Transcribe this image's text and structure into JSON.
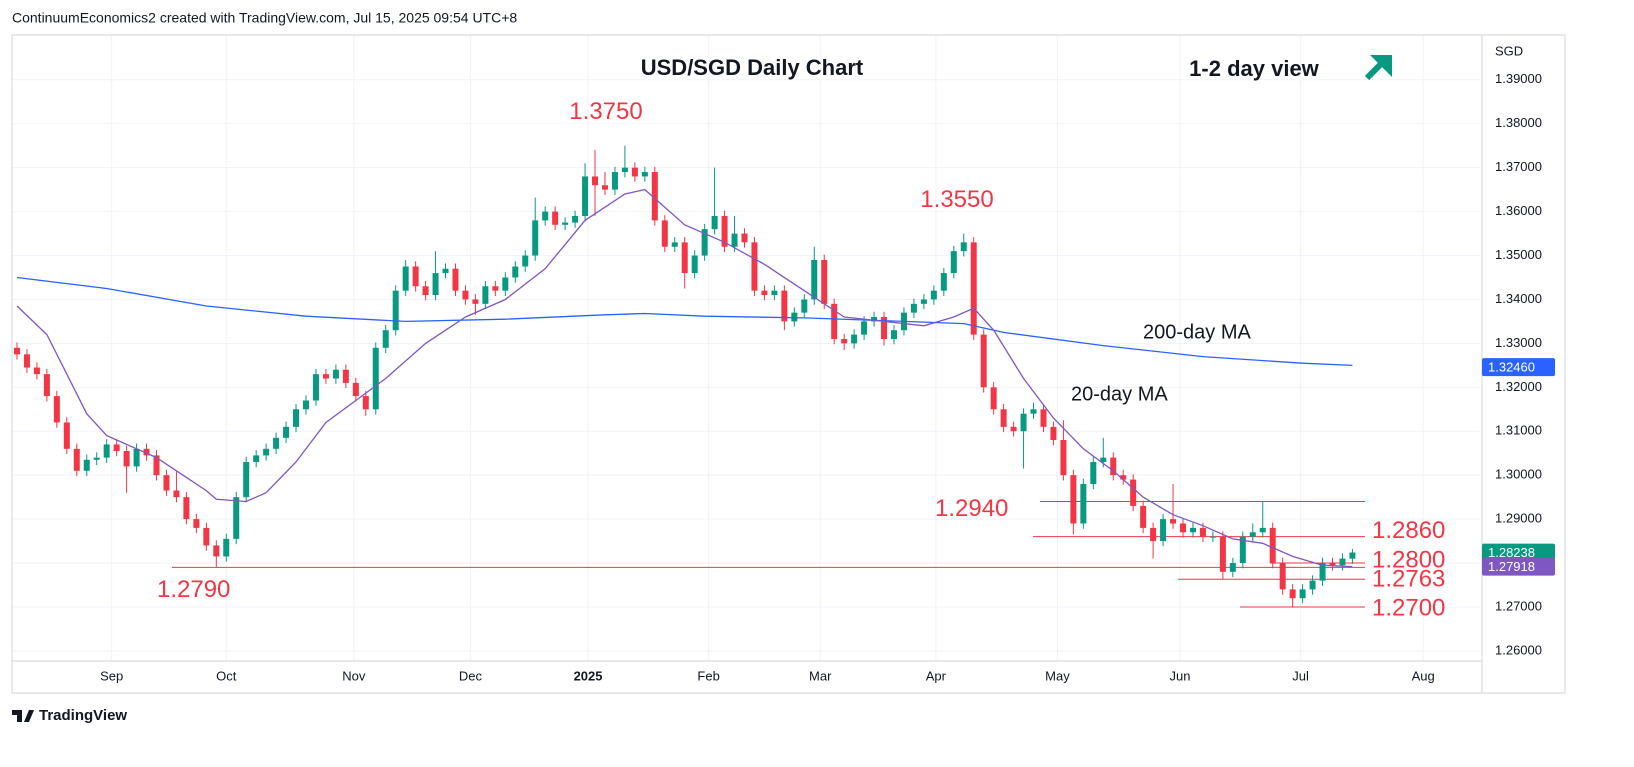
{
  "chart_data": {
    "type": "candlestick",
    "header": "ContinuumEconomics2 created with TradingView.com, Jul 15, 2025 09:54 UTC+8",
    "title": "USD/SGD Daily Chart",
    "view": "1-2 day view",
    "currency": "SGD",
    "footer": "TradingView",
    "up_color": "#089981",
    "down_color": "#f23645",
    "open": [
      1.329,
      1.3275,
      1.3245,
      1.323,
      1.318,
      1.312,
      1.306,
      1.301,
      1.3035,
      1.304,
      1.307,
      1.3055,
      1.302,
      1.306,
      1.3045,
      1.3,
      1.2965,
      1.295,
      1.29,
      1.288,
      1.284,
      1.2815,
      1.2855,
      1.295,
      1.303,
      1.3045,
      1.306,
      1.3085,
      1.311,
      1.315,
      1.317,
      1.323,
      1.322,
      1.324,
      1.321,
      1.318,
      1.315,
      1.329,
      1.333,
      1.342,
      1.3475,
      1.343,
      1.341,
      1.346,
      1.347,
      1.342,
      1.34,
      1.339,
      1.343,
      1.342,
      1.345,
      1.3475,
      1.35,
      1.358,
      1.36,
      1.357,
      1.3575,
      1.359,
      1.368,
      1.366,
      1.365,
      1.369,
      1.37,
      1.368,
      1.369,
      1.358,
      1.352,
      1.353,
      1.346,
      1.35,
      1.356,
      1.359,
      1.352,
      1.355,
      1.353,
      1.342,
      1.341,
      1.342,
      1.335,
      1.337,
      1.34,
      1.349,
      1.339,
      1.331,
      1.33,
      1.332,
      1.335,
      1.336,
      1.331,
      1.333,
      1.337,
      1.339,
      1.34,
      1.342,
      1.346,
      1.351,
      1.353,
      1.332,
      1.32,
      1.315,
      1.311,
      1.31,
      1.314,
      1.315,
      1.311,
      1.308,
      1.3,
      1.289,
      1.298,
      1.303,
      1.304,
      1.3,
      1.299,
      1.293,
      1.288,
      1.285,
      1.29,
      1.289,
      1.287,
      1.288,
      1.286,
      1.286,
      1.278,
      1.28,
      1.286,
      1.287,
      1.288,
      1.28,
      1.274,
      1.272,
      1.274,
      1.276,
      1.28,
      1.2795,
      1.281
    ],
    "high": [
      1.3302,
      1.3287,
      1.3257,
      1.3242,
      1.3192,
      1.3132,
      1.3072,
      1.3047,
      1.3052,
      1.3082,
      1.3082,
      1.3067,
      1.3072,
      1.3072,
      1.3057,
      1.3012,
      1.301,
      1.2962,
      1.2912,
      1.2892,
      1.2852,
      1.2867,
      1.2962,
      1.3042,
      1.3057,
      1.3072,
      1.3097,
      1.3122,
      1.3162,
      1.3182,
      1.3242,
      1.3242,
      1.3252,
      1.3252,
      1.3222,
      1.3192,
      1.3302,
      1.3342,
      1.3432,
      1.349,
      1.3487,
      1.3442,
      1.351,
      1.3482,
      1.3482,
      1.3432,
      1.3412,
      1.3442,
      1.3442,
      1.3462,
      1.3487,
      1.3512,
      1.3632,
      1.3612,
      1.3612,
      1.3587,
      1.3602,
      1.371,
      1.374,
      1.369,
      1.3702,
      1.375,
      1.3712,
      1.3702,
      1.3702,
      1.3592,
      1.3542,
      1.3542,
      1.3512,
      1.3572,
      1.37,
      1.3602,
      1.359,
      1.3562,
      1.3542,
      1.3432,
      1.3432,
      1.3432,
      1.3382,
      1.3412,
      1.352,
      1.3502,
      1.3402,
      1.3322,
      1.3332,
      1.3362,
      1.3372,
      1.3372,
      1.3342,
      1.3382,
      1.3402,
      1.3412,
      1.3432,
      1.3472,
      1.3522,
      1.355,
      1.3542,
      1.3332,
      1.3212,
      1.3162,
      1.3122,
      1.3152,
      1.3165,
      1.3162,
      1.3122,
      1.3125,
      1.3012,
      1.2992,
      1.3042,
      1.3085,
      1.3052,
      1.3012,
      1.3002,
      1.2942,
      1.2892,
      1.2912,
      1.298,
      1.2902,
      1.2892,
      1.2892,
      1.2872,
      1.2872,
      1.2812,
      1.2872,
      1.289,
      1.294,
      1.2892,
      1.2812,
      1.2752,
      1.2752,
      1.2772,
      1.2812,
      1.2812,
      1.2822,
      1.2832
    ],
    "low": [
      1.3263,
      1.3233,
      1.3218,
      1.3168,
      1.3108,
      1.3048,
      1.2998,
      1.2998,
      1.3023,
      1.3028,
      1.3043,
      1.296,
      1.3008,
      1.3033,
      1.2988,
      1.2953,
      1.2938,
      1.2888,
      1.2868,
      1.2828,
      1.279,
      1.2803,
      1.2843,
      1.2938,
      1.3018,
      1.3033,
      1.3048,
      1.3073,
      1.3098,
      1.3138,
      1.3158,
      1.3208,
      1.3208,
      1.3198,
      1.3168,
      1.3135,
      1.3138,
      1.3278,
      1.3318,
      1.3408,
      1.3418,
      1.3398,
      1.3398,
      1.3448,
      1.3408,
      1.3388,
      1.3365,
      1.3378,
      1.3408,
      1.3408,
      1.3438,
      1.3463,
      1.3488,
      1.3568,
      1.3558,
      1.3558,
      1.3563,
      1.3578,
      1.359,
      1.3638,
      1.3638,
      1.3678,
      1.3668,
      1.3668,
      1.3568,
      1.3508,
      1.3508,
      1.3425,
      1.3448,
      1.3488,
      1.3548,
      1.3508,
      1.3508,
      1.3518,
      1.3408,
      1.3398,
      1.3398,
      1.333,
      1.3338,
      1.3358,
      1.3388,
      1.3378,
      1.3298,
      1.3285,
      1.3288,
      1.3308,
      1.3338,
      1.3295,
      1.3298,
      1.3318,
      1.3358,
      1.3378,
      1.3388,
      1.3408,
      1.3448,
      1.3498,
      1.3308,
      1.3188,
      1.3138,
      1.3098,
      1.3088,
      1.3015,
      1.3128,
      1.3098,
      1.3068,
      1.2988,
      1.2865,
      1.2878,
      1.2968,
      1.3018,
      1.2988,
      1.2978,
      1.2918,
      1.2868,
      1.281,
      1.2838,
      1.2878,
      1.2858,
      1.2858,
      1.2848,
      1.2848,
      1.2763,
      1.2768,
      1.2788,
      1.2848,
      1.2858,
      1.2788,
      1.2728,
      1.27,
      1.2708,
      1.2728,
      1.2748,
      1.2783,
      1.2783,
      1.2798
    ],
    "close": [
      1.3275,
      1.3245,
      1.323,
      1.318,
      1.312,
      1.306,
      1.301,
      1.3035,
      1.304,
      1.307,
      1.3055,
      1.302,
      1.306,
      1.3045,
      1.3,
      1.2965,
      1.295,
      1.29,
      1.288,
      1.284,
      1.2815,
      1.2855,
      1.295,
      1.303,
      1.3045,
      1.306,
      1.3085,
      1.311,
      1.315,
      1.317,
      1.323,
      1.322,
      1.324,
      1.321,
      1.318,
      1.315,
      1.329,
      1.333,
      1.342,
      1.3475,
      1.343,
      1.341,
      1.346,
      1.347,
      1.342,
      1.34,
      1.339,
      1.343,
      1.342,
      1.345,
      1.3475,
      1.35,
      1.358,
      1.36,
      1.357,
      1.3575,
      1.359,
      1.368,
      1.366,
      1.365,
      1.369,
      1.37,
      1.368,
      1.369,
      1.358,
      1.352,
      1.353,
      1.346,
      1.35,
      1.356,
      1.359,
      1.352,
      1.355,
      1.353,
      1.342,
      1.341,
      1.342,
      1.335,
      1.337,
      1.34,
      1.349,
      1.339,
      1.331,
      1.33,
      1.332,
      1.335,
      1.336,
      1.331,
      1.333,
      1.337,
      1.339,
      1.34,
      1.342,
      1.346,
      1.351,
      1.353,
      1.332,
      1.32,
      1.315,
      1.311,
      1.31,
      1.314,
      1.315,
      1.311,
      1.308,
      1.3,
      1.289,
      1.298,
      1.303,
      1.304,
      1.3,
      1.299,
      1.293,
      1.288,
      1.285,
      1.29,
      1.289,
      1.287,
      1.288,
      1.286,
      1.286,
      1.278,
      1.28,
      1.286,
      1.287,
      1.288,
      1.28,
      1.274,
      1.272,
      1.274,
      1.276,
      1.28,
      1.2795,
      1.281,
      1.2824
    ],
    "xlim": [
      -0.5,
      146.8
    ],
    "xticks": [
      {
        "value": 9.5,
        "label": "Sep"
      },
      {
        "value": 21,
        "label": "Oct"
      },
      {
        "value": 33.8,
        "label": "Nov"
      },
      {
        "value": 45.5,
        "label": "Dec"
      },
      {
        "value": 57.3,
        "label": "2025"
      },
      {
        "value": 69.4,
        "label": "Feb"
      },
      {
        "value": 80.6,
        "label": "Mar"
      },
      {
        "value": 92.2,
        "label": "Apr"
      },
      {
        "value": 104.4,
        "label": "May"
      },
      {
        "value": 116.7,
        "label": "Jun"
      },
      {
        "value": 128.8,
        "label": "Jul"
      },
      {
        "value": 141.1,
        "label": "Aug"
      }
    ],
    "ylim": [
      1.2577,
      1.4002
    ],
    "yticks": [
      {
        "value": 1.26,
        "label": "1.26000"
      },
      {
        "value": 1.27,
        "label": "1.27000"
      },
      {
        "value": 1.28,
        "label": "1.28000"
      },
      {
        "value": 1.29,
        "label": "1.29000"
      },
      {
        "value": 1.3,
        "label": "1.30000"
      },
      {
        "value": 1.31,
        "label": "1.31000"
      },
      {
        "value": 1.32,
        "label": "1.32000"
      },
      {
        "value": 1.33,
        "label": "1.33000"
      },
      {
        "value": 1.34,
        "label": "1.34000"
      },
      {
        "value": 1.35,
        "label": "1.35000"
      },
      {
        "value": 1.36,
        "label": "1.36000"
      },
      {
        "value": 1.37,
        "label": "1.37000"
      },
      {
        "value": 1.38,
        "label": "1.38000"
      },
      {
        "value": 1.39,
        "label": "1.39000"
      }
    ],
    "grid": true,
    "moving_averages": [
      {
        "name": "200-day MA",
        "color": "#2962ff",
        "x": [
          0,
          9,
          19,
          29,
          39,
          49,
          59,
          63,
          69,
          79,
          89,
          95,
          99,
          109,
          119,
          129,
          134
        ],
        "values": [
          1.345,
          1.3425,
          1.3385,
          1.3362,
          1.335,
          1.3355,
          1.3365,
          1.3368,
          1.3362,
          1.3358,
          1.335,
          1.3345,
          1.3325,
          1.3295,
          1.327,
          1.3255,
          1.325
        ]
      },
      {
        "name": "20-day MA",
        "color": "#7e57c2",
        "x": [
          0,
          3,
          5,
          7,
          9,
          11,
          14,
          17,
          19,
          20,
          23,
          25,
          28,
          31,
          34,
          37,
          41,
          45,
          49,
          53,
          57,
          61,
          63,
          67,
          71,
          75,
          79,
          83,
          87,
          91,
          94,
          96,
          98,
          101,
          104,
          107,
          110,
          113,
          116,
          119,
          122,
          125,
          128,
          131,
          134
        ],
        "values": [
          1.3385,
          1.332,
          1.323,
          1.314,
          1.309,
          1.307,
          1.304,
          1.2995,
          1.2965,
          1.2945,
          1.294,
          1.296,
          1.303,
          1.312,
          1.317,
          1.322,
          1.33,
          1.336,
          1.34,
          1.347,
          1.358,
          1.364,
          1.365,
          1.357,
          1.353,
          1.348,
          1.342,
          1.336,
          1.335,
          1.334,
          1.336,
          1.338,
          1.333,
          1.322,
          1.313,
          1.306,
          1.301,
          1.295,
          1.291,
          1.2885,
          1.2855,
          1.2845,
          1.2815,
          1.2795,
          1.2792
        ]
      }
    ],
    "levels": [
      {
        "value": 1.279,
        "label": "1.2790"
      },
      {
        "value": 1.294,
        "label": "1.2940"
      },
      {
        "value": 1.286,
        "label": "1.2860"
      },
      {
        "value": 1.28,
        "label": "1.2800"
      },
      {
        "value": 1.2763,
        "label": "1.2763"
      },
      {
        "value": 1.27,
        "label": "1.2700"
      }
    ],
    "peaks": [
      {
        "value": 1.375,
        "label": "1.3750"
      },
      {
        "value": 1.355,
        "label": "1.3550"
      }
    ],
    "price_tags": [
      {
        "value": 1.3246,
        "label": "1.32460",
        "color": "#2962ff"
      },
      {
        "value": 1.28238,
        "label": "1.28238",
        "color": "#089981"
      },
      {
        "value": 1.27918,
        "label": "1.27918",
        "color": "#7e57c2"
      }
    ]
  }
}
